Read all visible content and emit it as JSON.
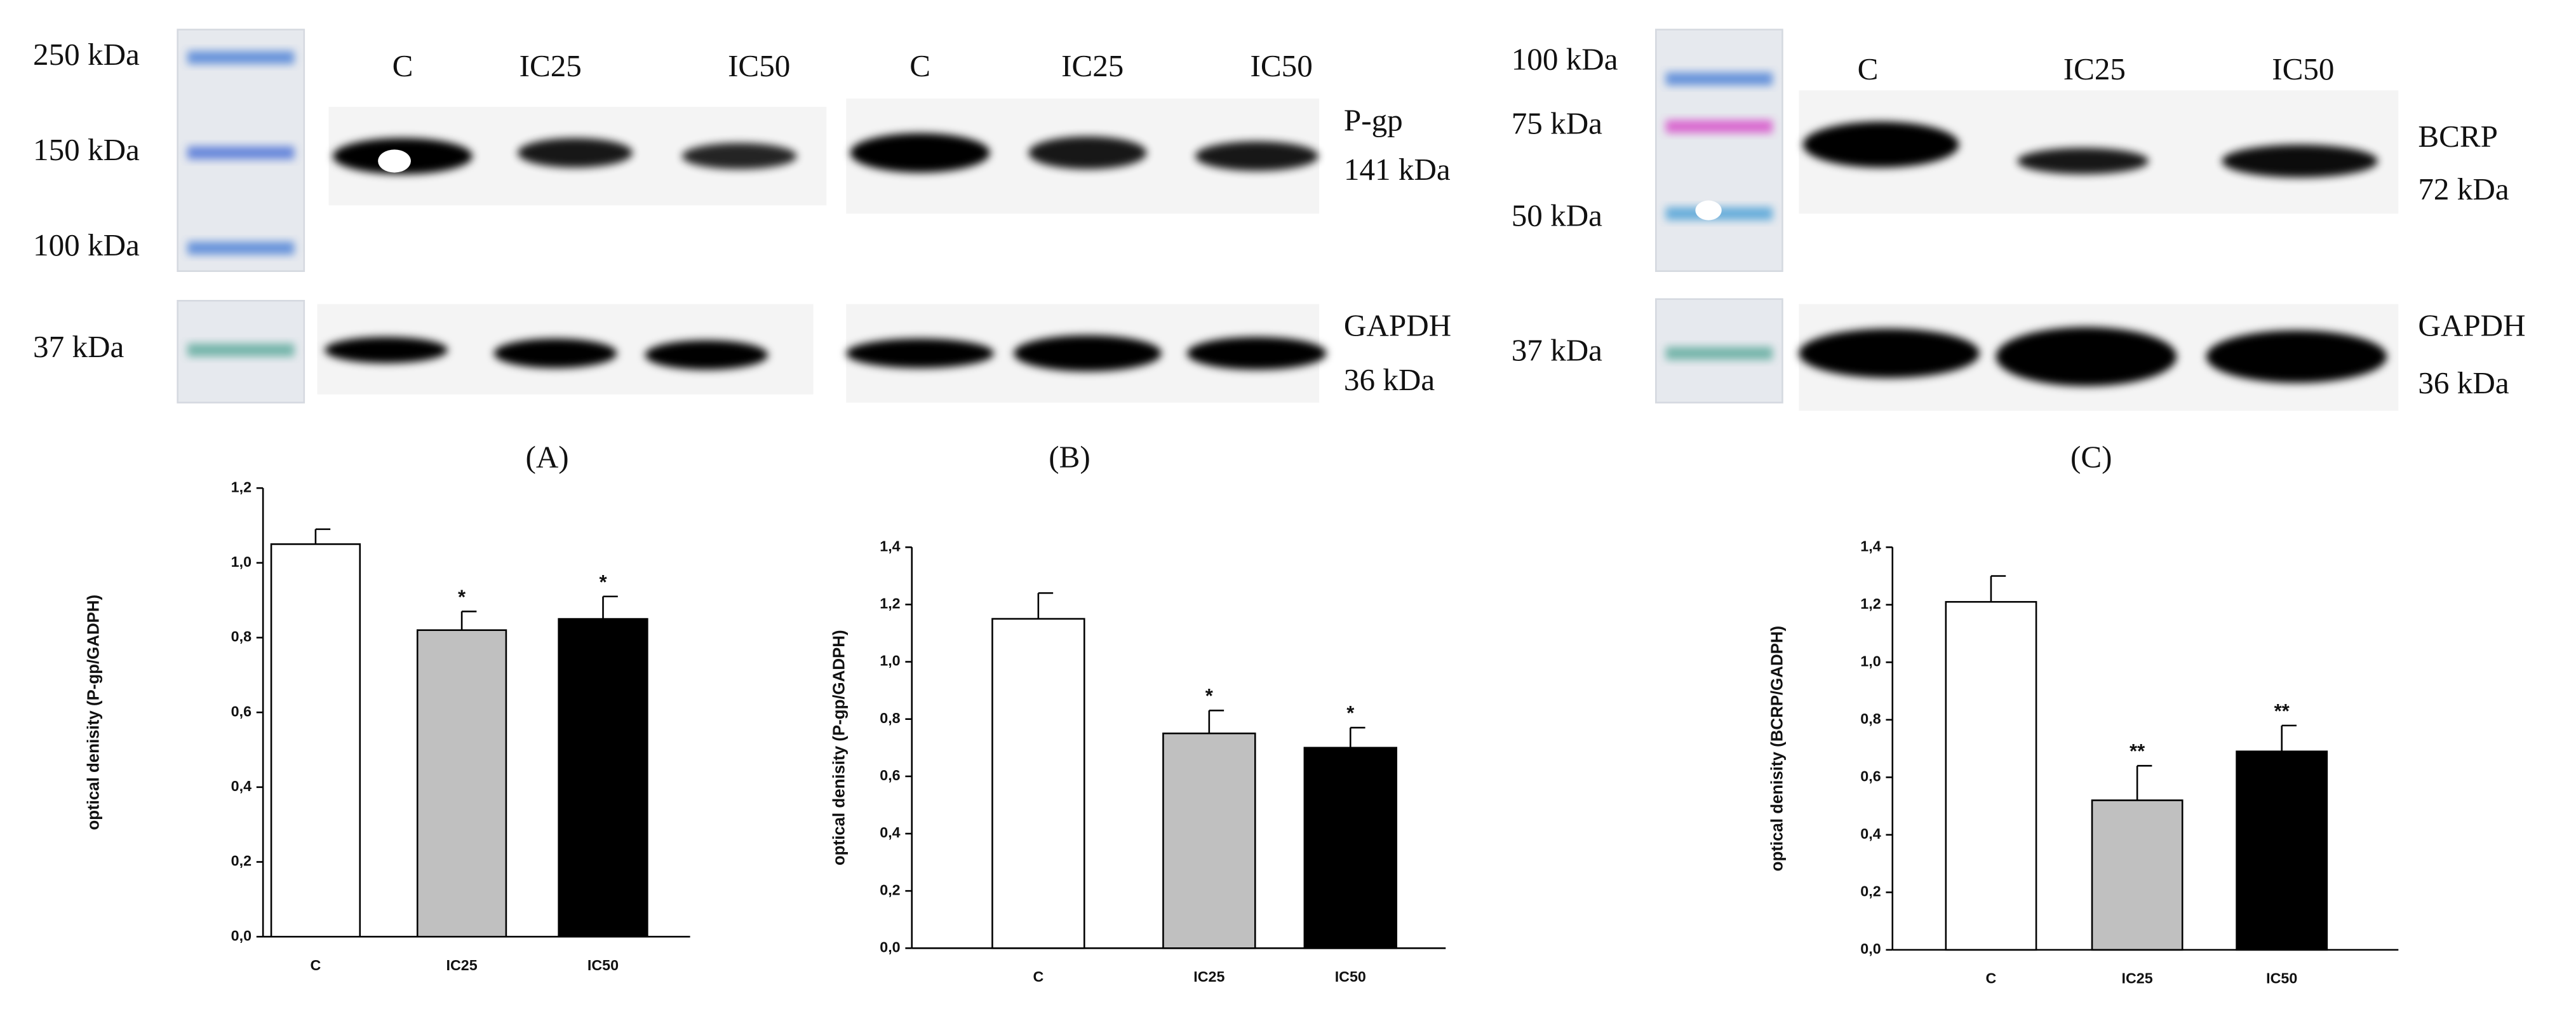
{
  "blots": [
    {
      "ladder_labels": [
        "250 kDa",
        "150 kDa",
        "100 kDa",
        "37 kDa"
      ],
      "lanes": [
        "C",
        "IC25",
        "IC50"
      ],
      "panel_label": "(A)"
    },
    {
      "lanes": [
        "C",
        "IC25",
        "IC50"
      ],
      "targets": [
        "P-gp",
        "141 kDa",
        "GAPDH",
        "36 kDa"
      ],
      "panel_label": "(B)"
    },
    {
      "ladder_labels": [
        "100 kDa",
        "75 kDa",
        "50 kDa",
        "37 kDa"
      ],
      "lanes": [
        "C",
        "IC25",
        "IC50"
      ],
      "targets": [
        "BCRP",
        "72 kDa",
        "GAPDH",
        "36 kDa"
      ],
      "panel_label": "(C)"
    }
  ],
  "chart_data": [
    {
      "type": "bar",
      "y_label": "optical denisity (P-gp/GADPH)",
      "categories": [
        "C",
        "IC25",
        "IC50"
      ],
      "values": [
        1.05,
        0.82,
        0.85
      ],
      "errors": [
        0.04,
        0.05,
        0.06
      ],
      "colors": [
        "#ffffff",
        "#c0c0c0",
        "#000000"
      ],
      "annotations": [
        null,
        "*",
        "*"
      ],
      "ylim": [
        0,
        1.2
      ],
      "yticks": [
        {
          "value": 0,
          "label": "0,0"
        },
        {
          "value": 0.2,
          "label": "0,2"
        },
        {
          "value": 0.4,
          "label": "0,4"
        },
        {
          "value": 0.6,
          "label": "0,6"
        },
        {
          "value": 0.8,
          "label": "0,8"
        },
        {
          "value": 1.0,
          "label": "1,0"
        },
        {
          "value": 1.2,
          "label": "1,2"
        }
      ]
    },
    {
      "type": "bar",
      "y_label": "optical denisity (P-gp/GADPH)",
      "categories": [
        "C",
        "IC25",
        "IC50"
      ],
      "values": [
        1.15,
        0.75,
        0.7
      ],
      "errors": [
        0.09,
        0.08,
        0.07
      ],
      "colors": [
        "#ffffff",
        "#c0c0c0",
        "#000000"
      ],
      "annotations": [
        null,
        "*",
        "*"
      ],
      "ylim": [
        0,
        1.4
      ],
      "yticks": [
        {
          "value": 0,
          "label": "0,0"
        },
        {
          "value": 0.2,
          "label": "0,2"
        },
        {
          "value": 0.4,
          "label": "0,4"
        },
        {
          "value": 0.6,
          "label": "0,6"
        },
        {
          "value": 0.8,
          "label": "0,8"
        },
        {
          "value": 1.0,
          "label": "1,0"
        },
        {
          "value": 1.2,
          "label": "1,2"
        },
        {
          "value": 1.4,
          "label": "1,4"
        }
      ]
    },
    {
      "type": "bar",
      "y_label": "optical denisity (BCRP/GADPH)",
      "categories": [
        "C",
        "IC25",
        "IC50"
      ],
      "values": [
        1.21,
        0.52,
        0.69
      ],
      "errors": [
        0.09,
        0.12,
        0.09
      ],
      "colors": [
        "#ffffff",
        "#c0c0c0",
        "#000000"
      ],
      "annotations": [
        null,
        "**",
        "**"
      ],
      "ylim": [
        0,
        1.4
      ],
      "yticks": [
        {
          "value": 0,
          "label": "0,0"
        },
        {
          "value": 0.2,
          "label": "0,2"
        },
        {
          "value": 0.4,
          "label": "0,4"
        },
        {
          "value": 0.6,
          "label": "0,6"
        },
        {
          "value": 0.8,
          "label": "0,8"
        },
        {
          "value": 1.0,
          "label": "1,0"
        },
        {
          "value": 1.2,
          "label": "1,2"
        },
        {
          "value": 1.4,
          "label": "1,4"
        }
      ]
    }
  ]
}
